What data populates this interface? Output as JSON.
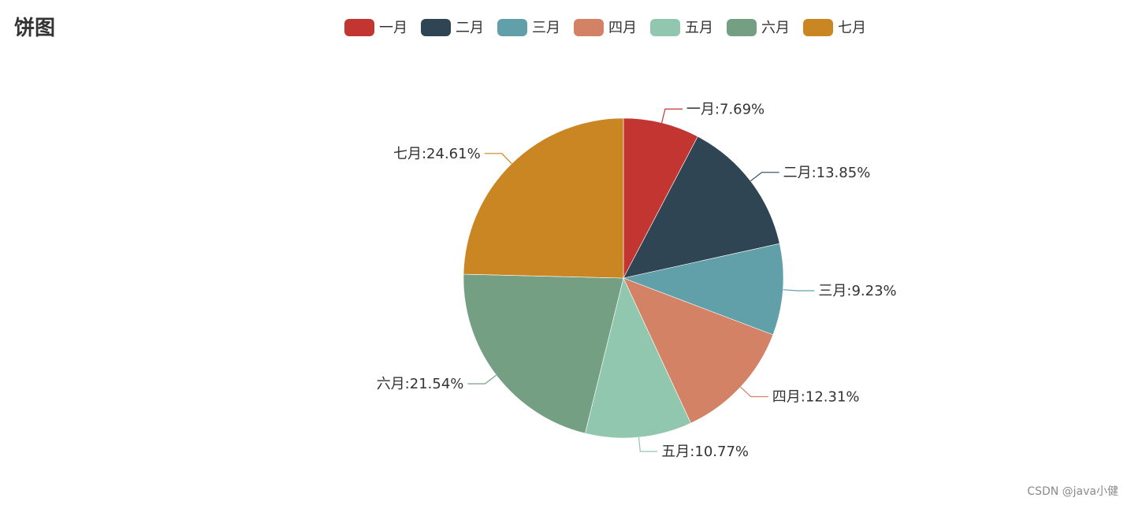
{
  "chart_data": {
    "type": "pie",
    "title": "饼图",
    "legend_position": "top-center",
    "start_angle_deg": 90,
    "clockwise": true,
    "categories": [
      "一月",
      "二月",
      "三月",
      "四月",
      "五月",
      "六月",
      "七月"
    ],
    "values": [
      7.69,
      13.85,
      9.23,
      12.31,
      10.77,
      21.54,
      24.61
    ],
    "labels": [
      "一月:7.69%",
      "二月:13.85%",
      "三月:9.23%",
      "四月:12.31%",
      "五月:10.77%",
      "六月:21.54%",
      "七月:24.61%"
    ],
    "colors": [
      "#c23531",
      "#2f4554",
      "#61a0a8",
      "#d48265",
      "#91c7ae",
      "#749f83",
      "#ca8622"
    ]
  },
  "watermark": "CSDN @java小健"
}
